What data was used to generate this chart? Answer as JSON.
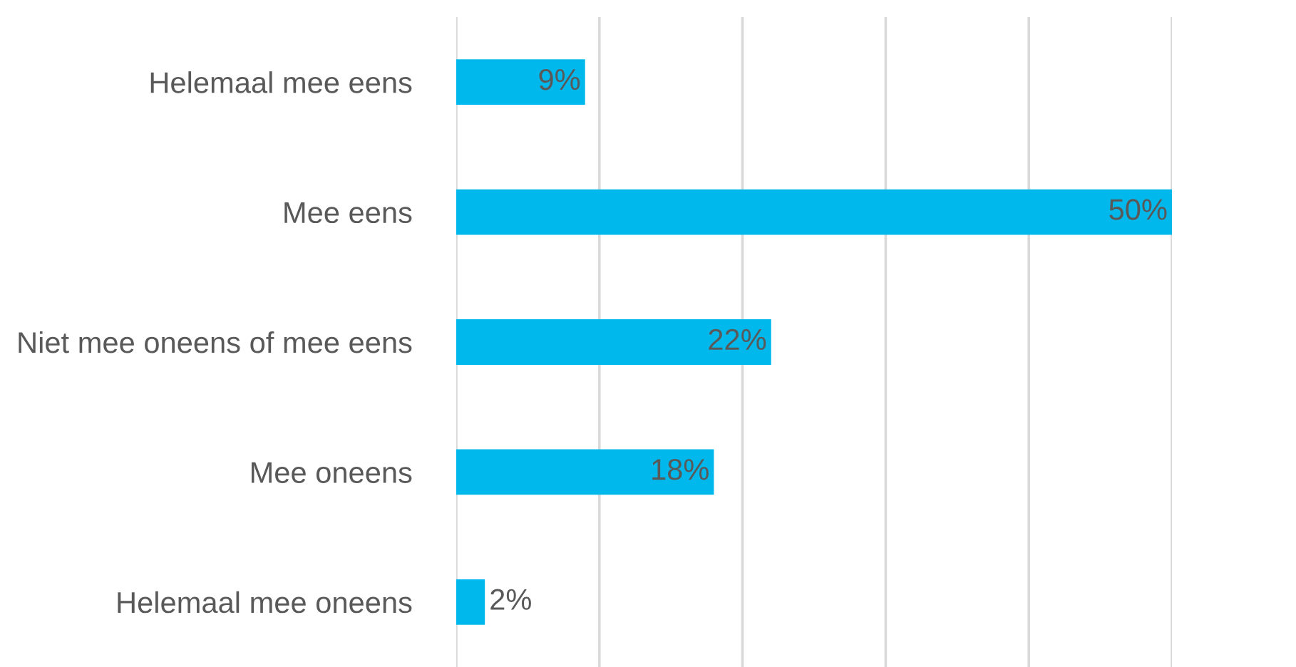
{
  "chart_data": {
    "type": "bar",
    "orientation": "horizontal",
    "categories": [
      "Helemaal mee eens",
      "Mee eens",
      "Niet mee oneens of mee eens",
      "Mee oneens",
      "Helemaal mee oneens"
    ],
    "values": [
      9,
      50,
      22,
      18,
      2
    ],
    "color": "#00b8eb",
    "data_labels": true,
    "value_labels": [
      "9%",
      "50%",
      "22%",
      "18%",
      "2%"
    ],
    "xlim": [
      0,
      50
    ],
    "xticks": [
      {
        "value": 0,
        "label": null
      },
      {
        "value": 10,
        "label": null
      },
      {
        "value": 20,
        "label": null
      },
      {
        "value": 30,
        "label": null
      },
      {
        "value": 40,
        "label": null
      },
      {
        "value": 50,
        "label": null
      }
    ],
    "tick_labels": "y",
    "grid": "x",
    "legend": false
  }
}
